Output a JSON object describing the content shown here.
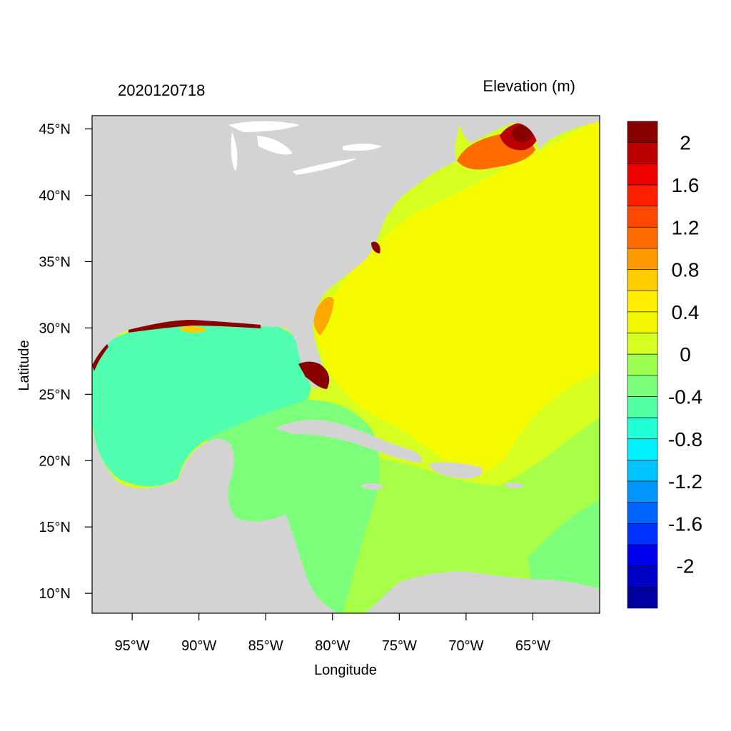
{
  "map": {
    "left_title": "2020120718",
    "right_title": "Elevation (m)",
    "xlabel": "Longitude",
    "ylabel": "Latitude",
    "lon_range": [
      -98,
      -60
    ],
    "lat_range": [
      8.5,
      46
    ],
    "lon_ticks": [
      "95°W",
      "90°W",
      "85°W",
      "80°W",
      "75°W",
      "70°W",
      "65°W"
    ],
    "lon_tick_values": [
      -95,
      -90,
      -85,
      -80,
      -75,
      -70,
      -65
    ],
    "lat_ticks": [
      "45°N",
      "40°N",
      "35°N",
      "30°N",
      "25°N",
      "20°N",
      "15°N",
      "10°N"
    ],
    "lat_tick_values": [
      45,
      40,
      35,
      30,
      25,
      20,
      15,
      10
    ],
    "land_color": "#d3d3d3"
  },
  "colorbar": {
    "labels": [
      "2",
      "1.6",
      "1.2",
      "0.8",
      "0.4",
      "0",
      "-0.4",
      "-0.8",
      "-1.2",
      "-1.6",
      "-2"
    ],
    "colors": [
      "#880000",
      "#bb0000",
      "#ee0000",
      "#ff2000",
      "#ff4800",
      "#ff6c00",
      "#ff9900",
      "#ffcc00",
      "#ffee00",
      "#f2f700",
      "#d6ff21",
      "#9bff52",
      "#7bff7b",
      "#52ffa4",
      "#21ffd6",
      "#00f0ff",
      "#00c4ff",
      "#0096ff",
      "#0064ff",
      "#0032ff",
      "#0000ee",
      "#0000c4",
      "#0000a0"
    ]
  }
}
